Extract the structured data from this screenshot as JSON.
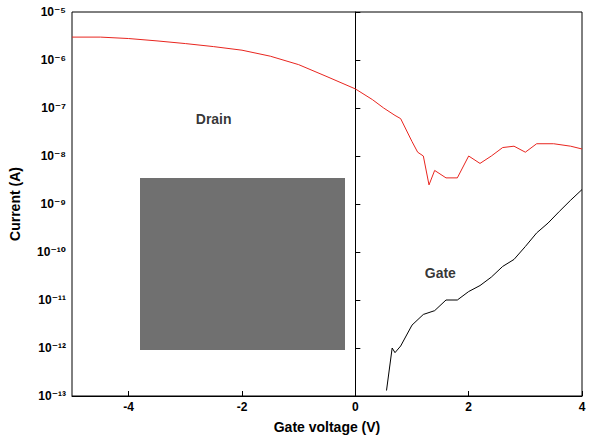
{
  "chart_data": {
    "type": "line",
    "x_label": "Gate voltage (V)",
    "y_label": "Current (A)",
    "log": "y",
    "xlim": [
      -5,
      4
    ],
    "xticks": [
      -4,
      -2,
      0,
      2,
      4
    ],
    "ylim": [
      1e-13,
      1e-05
    ],
    "yticks": [
      {
        "value": 1e-13,
        "label": "10⁻¹³"
      },
      {
        "value": 1e-12,
        "label": "10⁻¹²"
      },
      {
        "value": 1e-11,
        "label": "10⁻¹¹"
      },
      {
        "value": 1e-10,
        "label": "10⁻¹⁰"
      },
      {
        "value": 1e-09,
        "label": "10⁻⁹"
      },
      {
        "value": 1e-08,
        "label": "10⁻⁸"
      },
      {
        "value": 1e-07,
        "label": "10⁻⁷"
      },
      {
        "value": 1e-06,
        "label": "10⁻⁶"
      },
      {
        "value": 1e-05,
        "label": "10⁻⁵"
      }
    ],
    "series": [
      {
        "name": "Drain",
        "color": "#e8251f",
        "x": [
          -5,
          -4.5,
          -4,
          -3.5,
          -3,
          -2.5,
          -2,
          -1.5,
          -1,
          -0.5,
          0,
          0.3,
          0.5,
          0.7,
          0.8,
          1.0,
          1.1,
          1.2,
          1.3,
          1.4,
          1.6,
          1.8,
          2.0,
          2.2,
          2.4,
          2.6,
          2.8,
          3.0,
          3.2,
          3.5,
          3.8,
          4.0
        ],
        "values": [
          3e-06,
          3e-06,
          2.8e-06,
          2.5e-06,
          2.2e-06,
          1.9e-06,
          1.6e-06,
          1.2e-06,
          8e-07,
          4.5e-07,
          2.5e-07,
          1.5e-07,
          1e-07,
          7e-08,
          6e-08,
          2e-08,
          1.2e-08,
          1e-08,
          2.5e-09,
          5e-09,
          3.5e-09,
          3.5e-09,
          1e-08,
          7e-09,
          1e-08,
          1.5e-08,
          1.6e-08,
          1.2e-08,
          1.8e-08,
          1.8e-08,
          1.6e-08,
          1.4e-08
        ]
      },
      {
        "name": "Gate",
        "color": "#000000",
        "x": [
          0.55,
          0.65,
          0.7,
          0.8,
          1.0,
          1.2,
          1.4,
          1.6,
          1.8,
          2.0,
          2.2,
          2.4,
          2.6,
          2.8,
          3.0,
          3.2,
          3.4,
          3.6,
          3.8,
          4.0
        ],
        "values": [
          1.3e-13,
          1e-12,
          8e-13,
          1.1e-12,
          3e-12,
          5e-12,
          6e-12,
          1e-11,
          1e-11,
          1.5e-11,
          2e-11,
          3e-11,
          5e-11,
          7e-11,
          1.3e-10,
          2.5e-10,
          4e-10,
          7e-10,
          1.2e-09,
          2e-09
        ]
      }
    ],
    "annotations": [
      {
        "text": "Drain",
        "x": -2.5,
        "y": 6e-08
      },
      {
        "text": "Gate",
        "x": 1.5,
        "y": 3.6e-11
      }
    ]
  }
}
